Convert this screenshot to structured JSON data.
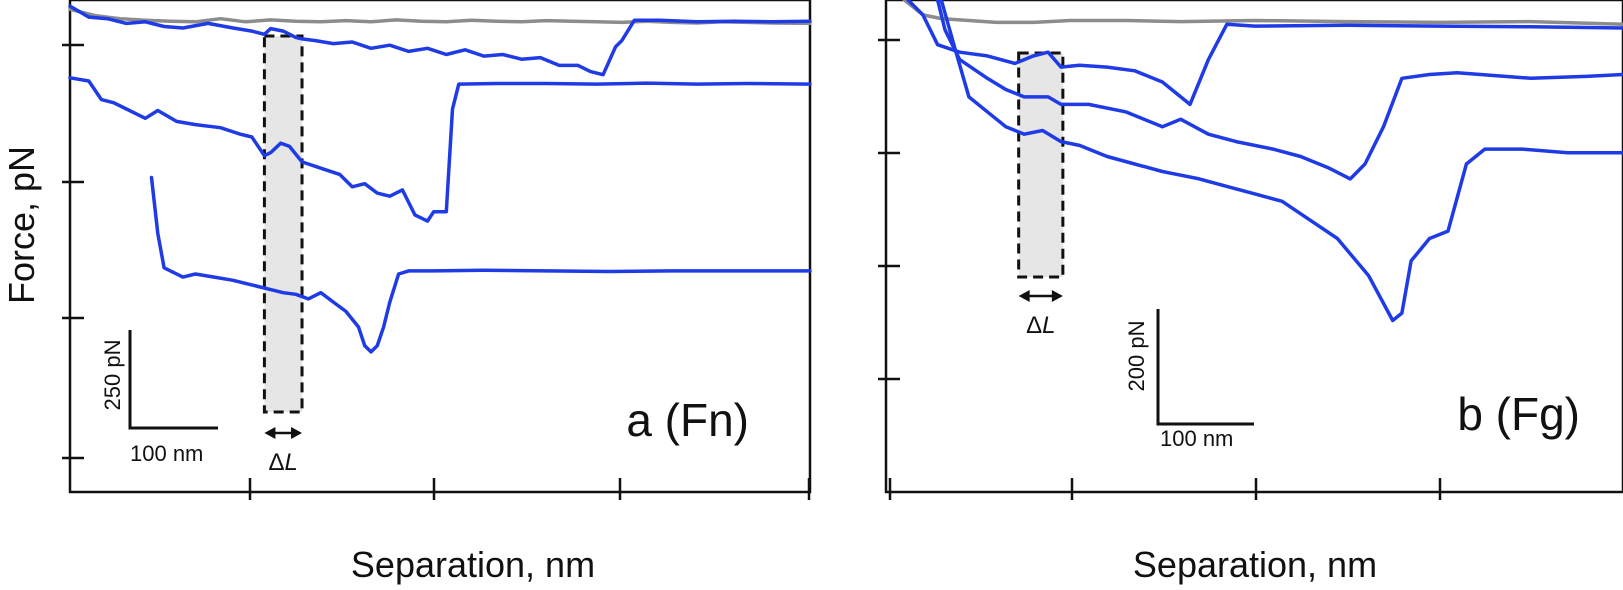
{
  "figure": {
    "ylabel": "Force, pN"
  },
  "chart_data": [
    {
      "type": "line",
      "panel_label": "a (Fn)",
      "xlabel": "Separation, nm",
      "ylabel": "Force, pN",
      "x_unit": "nm",
      "y_unit": "pN",
      "scale_bar": {
        "x_label": "100 nm",
        "x_value": 100,
        "y_label": "250 pN",
        "y_value": 250
      },
      "delta_label": "ΔL",
      "xlim": [
        0,
        590
      ],
      "ylim": [
        -50,
        1530
      ],
      "highlight_x": [
        155,
        185
      ],
      "colors": {
        "background_trace": "#8c8c8c",
        "unfolding_trace": "#1f3be6",
        "highlight_fill": "#e6e6e6"
      },
      "series": [
        {
          "kind": "baseline",
          "points": [
            [
              0,
              1500
            ],
            [
              20,
              1480
            ],
            [
              40,
              1470
            ],
            [
              60,
              1465
            ],
            [
              80,
              1462
            ],
            [
              100,
              1460
            ],
            [
              120,
              1470
            ],
            [
              140,
              1460
            ],
            [
              160,
              1466
            ],
            [
              180,
              1462
            ],
            [
              200,
              1460
            ],
            [
              220,
              1464
            ],
            [
              240,
              1460
            ],
            [
              260,
              1466
            ],
            [
              280,
              1462
            ],
            [
              300,
              1460
            ],
            [
              320,
              1465
            ],
            [
              340,
              1462
            ],
            [
              360,
              1460
            ],
            [
              380,
              1464
            ],
            [
              400,
              1462
            ],
            [
              420,
              1460
            ],
            [
              440,
              1458
            ],
            [
              460,
              1462
            ],
            [
              480,
              1458
            ],
            [
              500,
              1456
            ],
            [
              520,
              1460
            ],
            [
              540,
              1458
            ],
            [
              560,
              1456
            ],
            [
              590,
              1455
            ]
          ]
        },
        {
          "kind": "trace",
          "points": [
            [
              0,
              1510
            ],
            [
              15,
              1475
            ],
            [
              30,
              1470
            ],
            [
              45,
              1455
            ],
            [
              60,
              1460
            ],
            [
              75,
              1445
            ],
            [
              90,
              1440
            ],
            [
              110,
              1455
            ],
            [
              130,
              1440
            ],
            [
              145,
              1430
            ],
            [
              155,
              1420
            ],
            [
              160,
              1438
            ],
            [
              170,
              1430
            ],
            [
              180,
              1410
            ],
            [
              185,
              1405
            ],
            [
              195,
              1400
            ],
            [
              210,
              1390
            ],
            [
              225,
              1395
            ],
            [
              240,
              1375
            ],
            [
              255,
              1385
            ],
            [
              270,
              1365
            ],
            [
              285,
              1375
            ],
            [
              300,
              1355
            ],
            [
              315,
              1370
            ],
            [
              330,
              1350
            ],
            [
              345,
              1355
            ],
            [
              360,
              1340
            ],
            [
              375,
              1345
            ],
            [
              390,
              1320
            ],
            [
              405,
              1320
            ],
            [
              415,
              1300
            ],
            [
              425,
              1290
            ],
            [
              435,
              1380
            ],
            [
              440,
              1400
            ],
            [
              450,
              1465
            ],
            [
              470,
              1465
            ],
            [
              500,
              1460
            ],
            [
              530,
              1462
            ],
            [
              560,
              1460
            ],
            [
              590,
              1462
            ]
          ]
        },
        {
          "kind": "trace",
          "points": [
            [
              0,
              1280
            ],
            [
              15,
              1270
            ],
            [
              25,
              1210
            ],
            [
              35,
              1200
            ],
            [
              45,
              1180
            ],
            [
              60,
              1150
            ],
            [
              70,
              1175
            ],
            [
              85,
              1140
            ],
            [
              100,
              1130
            ],
            [
              120,
              1120
            ],
            [
              135,
              1100
            ],
            [
              145,
              1090
            ],
            [
              155,
              1030
            ],
            [
              160,
              1040
            ],
            [
              168,
              1070
            ],
            [
              175,
              1060
            ],
            [
              185,
              1010
            ],
            [
              200,
              990
            ],
            [
              215,
              970
            ],
            [
              225,
              930
            ],
            [
              235,
              940
            ],
            [
              245,
              910
            ],
            [
              255,
              900
            ],
            [
              265,
              920
            ],
            [
              275,
              840
            ],
            [
              285,
              820
            ],
            [
              290,
              850
            ],
            [
              300,
              850
            ],
            [
              305,
              1180
            ],
            [
              310,
              1260
            ],
            [
              340,
              1262
            ],
            [
              380,
              1262
            ],
            [
              420,
              1260
            ],
            [
              460,
              1263
            ],
            [
              500,
              1260
            ],
            [
              540,
              1262
            ],
            [
              590,
              1260
            ]
          ]
        },
        {
          "kind": "trace",
          "points": [
            [
              65,
              960
            ],
            [
              70,
              780
            ],
            [
              75,
              670
            ],
            [
              90,
              640
            ],
            [
              100,
              650
            ],
            [
              115,
              640
            ],
            [
              130,
              630
            ],
            [
              140,
              620
            ],
            [
              150,
              610
            ],
            [
              160,
              600
            ],
            [
              170,
              590
            ],
            [
              180,
              585
            ],
            [
              190,
              570
            ],
            [
              200,
              590
            ],
            [
              210,
              560
            ],
            [
              220,
              530
            ],
            [
              230,
              480
            ],
            [
              235,
              420
            ],
            [
              240,
              400
            ],
            [
              245,
              420
            ],
            [
              250,
              480
            ],
            [
              255,
              560
            ],
            [
              262,
              650
            ],
            [
              270,
              660
            ],
            [
              290,
              660
            ],
            [
              330,
              662
            ],
            [
              380,
              660
            ],
            [
              430,
              658
            ],
            [
              480,
              660
            ],
            [
              530,
              660
            ],
            [
              590,
              660
            ]
          ]
        }
      ]
    },
    {
      "type": "line",
      "panel_label": "b (Fg)",
      "xlabel": "Separation, nm",
      "ylabel": "Force, pN",
      "x_unit": "nm",
      "y_unit": "pN",
      "scale_bar": {
        "x_label": "100 nm",
        "x_value": 100,
        "y_label": "200 pN",
        "y_value": 200
      },
      "delta_label": "ΔL",
      "xlim": [
        0,
        400
      ],
      "ylim": [
        -80,
        1240
      ],
      "highlight_x": [
        72,
        96
      ],
      "colors": {
        "background_trace": "#8c8c8c",
        "unfolding_trace": "#1f3be6",
        "highlight_fill": "#e6e6e6"
      },
      "series": [
        {
          "kind": "baseline",
          "points": [
            [
              10,
              1240
            ],
            [
              20,
              1200
            ],
            [
              30,
              1190
            ],
            [
              45,
              1185
            ],
            [
              60,
              1180
            ],
            [
              80,
              1180
            ],
            [
              100,
              1185
            ],
            [
              130,
              1185
            ],
            [
              160,
              1182
            ],
            [
              200,
              1185
            ],
            [
              250,
              1182
            ],
            [
              300,
              1180
            ],
            [
              350,
              1182
            ],
            [
              400,
              1175
            ]
          ]
        },
        {
          "kind": "trace",
          "points": [
            [
              12,
              1240
            ],
            [
              20,
              1200
            ],
            [
              28,
              1120
            ],
            [
              40,
              1100
            ],
            [
              55,
              1090
            ],
            [
              70,
              1070
            ],
            [
              80,
              1090
            ],
            [
              88,
              1100
            ],
            [
              95,
              1060
            ],
            [
              105,
              1065
            ],
            [
              120,
              1060
            ],
            [
              135,
              1050
            ],
            [
              150,
              1020
            ],
            [
              165,
              960
            ],
            [
              175,
              1080
            ],
            [
              185,
              1175
            ],
            [
              200,
              1170
            ],
            [
              250,
              1172
            ],
            [
              300,
              1170
            ],
            [
              350,
              1168
            ],
            [
              400,
              1165
            ]
          ]
        },
        {
          "kind": "trace",
          "points": [
            [
              28,
              1240
            ],
            [
              32,
              1160
            ],
            [
              40,
              1080
            ],
            [
              55,
              1030
            ],
            [
              65,
              1000
            ],
            [
              75,
              980
            ],
            [
              88,
              980
            ],
            [
              95,
              960
            ],
            [
              110,
              960
            ],
            [
              130,
              940
            ],
            [
              150,
              900
            ],
            [
              160,
              920
            ],
            [
              175,
              880
            ],
            [
              190,
              860
            ],
            [
              210,
              840
            ],
            [
              225,
              820
            ],
            [
              240,
              790
            ],
            [
              252,
              760
            ],
            [
              260,
              800
            ],
            [
              270,
              900
            ],
            [
              280,
              1030
            ],
            [
              295,
              1040
            ],
            [
              310,
              1045
            ],
            [
              350,
              1030
            ],
            [
              380,
              1035
            ],
            [
              400,
              1040
            ]
          ]
        },
        {
          "kind": "trace",
          "points": [
            [
              30,
              1240
            ],
            [
              38,
              1100
            ],
            [
              45,
              980
            ],
            [
              55,
              940
            ],
            [
              65,
              900
            ],
            [
              75,
              880
            ],
            [
              85,
              890
            ],
            [
              95,
              860
            ],
            [
              105,
              850
            ],
            [
              120,
              820
            ],
            [
              135,
              800
            ],
            [
              150,
              780
            ],
            [
              160,
              770
            ],
            [
              170,
              760
            ],
            [
              185,
              740
            ],
            [
              200,
              720
            ],
            [
              215,
              700
            ],
            [
              230,
              650
            ],
            [
              245,
              600
            ],
            [
              262,
              500
            ],
            [
              275,
              380
            ],
            [
              280,
              400
            ],
            [
              285,
              540
            ],
            [
              295,
              600
            ],
            [
              305,
              620
            ],
            [
              315,
              800
            ],
            [
              325,
              840
            ],
            [
              345,
              840
            ],
            [
              370,
              830
            ],
            [
              400,
              830
            ]
          ]
        }
      ]
    }
  ]
}
